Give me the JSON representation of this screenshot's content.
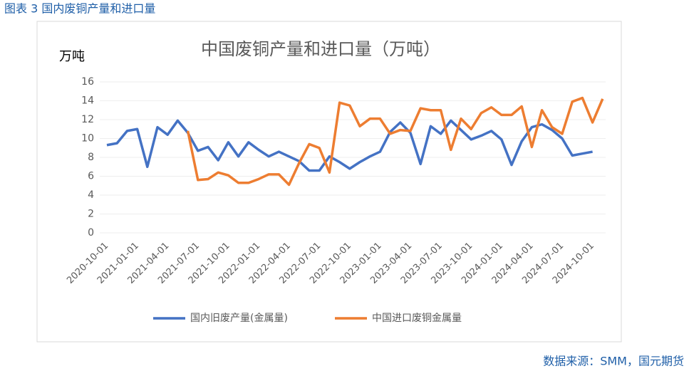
{
  "caption": "图表 3 国内废铜产量和进口量",
  "source": "数据来源：SMM，国元期货",
  "chart_data": {
    "type": "line",
    "title": "中国废铜产量和进口量（万吨）",
    "y_label": "万吨",
    "categories": [
      "2020-10-01",
      null,
      null,
      "2021-01-01",
      null,
      null,
      "2021-04-01",
      null,
      null,
      "2021-07-01",
      null,
      null,
      "2021-10-01",
      null,
      null,
      "2022-01-01",
      null,
      null,
      "2022-04-01",
      null,
      null,
      "2022-07-01",
      null,
      null,
      "2022-10-01",
      null,
      null,
      "2023-01-01",
      null,
      null,
      "2023-04-01",
      null,
      null,
      "2023-07-01",
      null,
      null,
      "2023-10-01",
      null,
      null,
      "2024-01-01",
      null,
      null,
      "2024-04-01",
      null,
      null,
      "2024-07-01",
      null,
      null,
      "2024-10-01",
      null
    ],
    "series": [
      {
        "name": "国内旧废产量(金属量)",
        "color": "#4472c4",
        "values": [
          9.3,
          9.5,
          10.8,
          11.0,
          7.0,
          11.2,
          10.4,
          11.9,
          10.6,
          8.7,
          9.1,
          7.7,
          9.6,
          8.1,
          9.6,
          8.8,
          8.1,
          8.6,
          8.1,
          7.6,
          6.6,
          6.6,
          8.1,
          7.5,
          6.8,
          7.5,
          8.1,
          8.6,
          10.7,
          11.7,
          10.6,
          7.3,
          11.3,
          10.5,
          11.9,
          10.9,
          9.9,
          10.3,
          10.8,
          9.9,
          7.2,
          9.7,
          11.2,
          11.5,
          10.9,
          10.0,
          8.2,
          8.4,
          8.6,
          null
        ]
      },
      {
        "name": "中国进口废铜金属量",
        "color": "#ed7d31",
        "values": [
          null,
          null,
          null,
          null,
          null,
          null,
          null,
          null,
          10.8,
          5.6,
          5.7,
          6.4,
          6.1,
          5.3,
          5.3,
          5.7,
          6.2,
          6.2,
          5.1,
          7.4,
          9.4,
          9.0,
          6.4,
          13.8,
          13.5,
          11.3,
          12.1,
          12.1,
          10.5,
          10.9,
          10.8,
          13.2,
          13.0,
          13.0,
          8.8,
          12.1,
          11.0,
          12.7,
          13.3,
          12.5,
          12.5,
          13.4,
          9.1,
          13.0,
          11.2,
          10.5,
          13.9,
          14.3,
          11.7,
          14.2
        ]
      }
    ],
    "ylim": [
      0,
      16
    ],
    "yticks": [
      0,
      2,
      4,
      6,
      8,
      10,
      12,
      14,
      16
    ],
    "grid": true,
    "legend": "bottom"
  }
}
